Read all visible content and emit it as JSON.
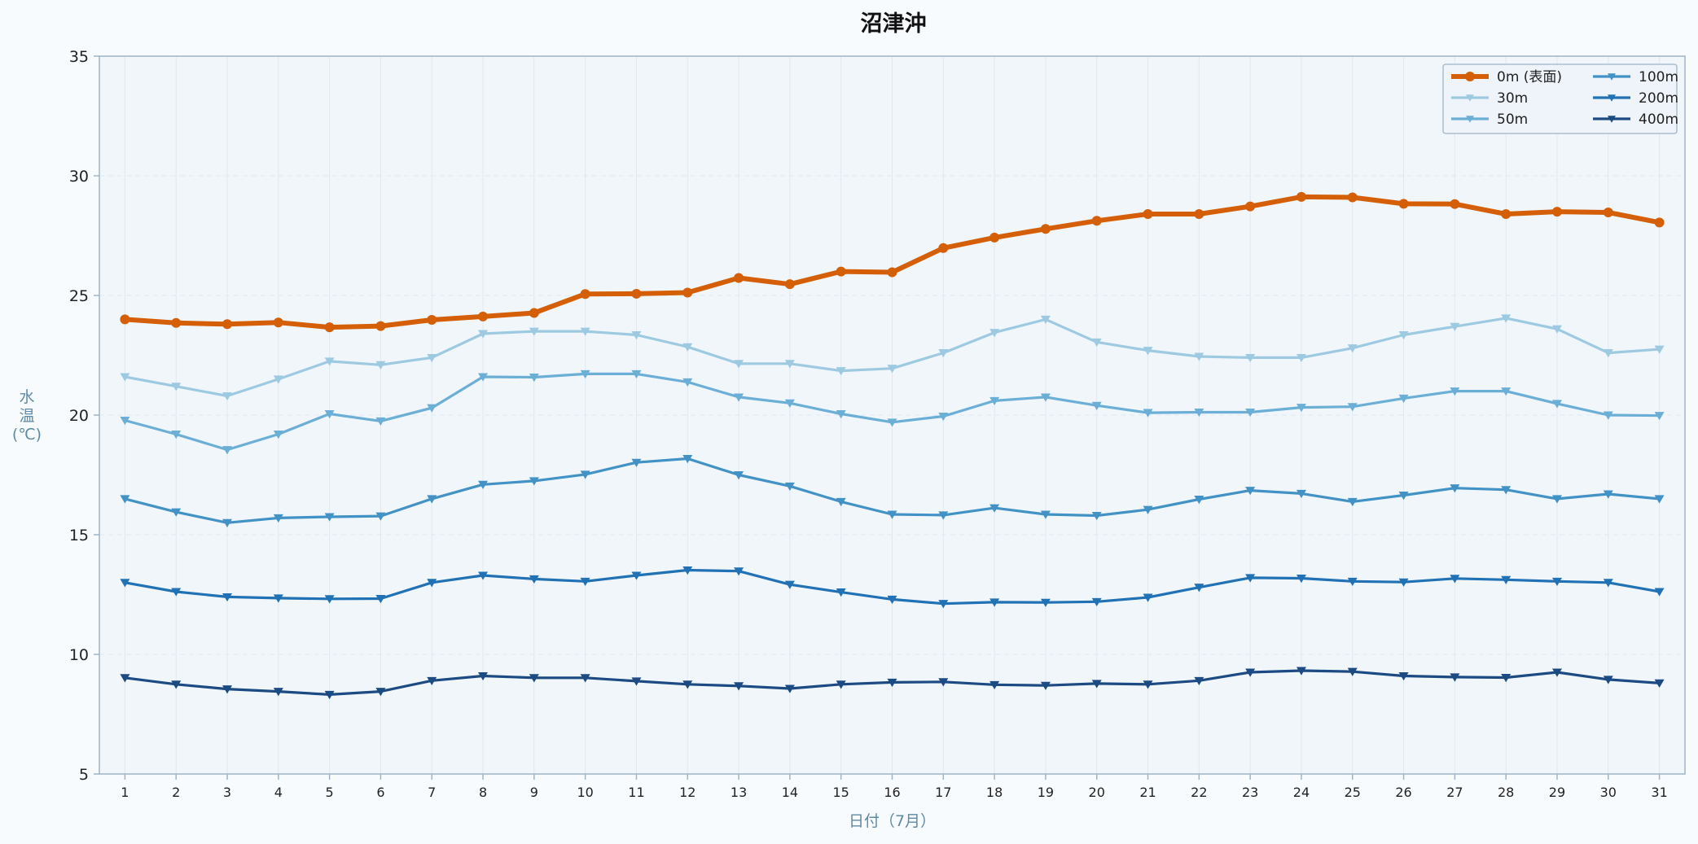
{
  "colors": {
    "background": "#f7fbfe",
    "plot_background": "#f1f6fb",
    "axis": "#9fb4c6",
    "grid": "#dfe8f1",
    "axis_label": "#5f8aa3"
  },
  "chart_data": {
    "type": "line",
    "title": "沼津沖",
    "xlabel": "日付（7月）",
    "ylabel_lines": [
      "水",
      "温",
      "(℃)"
    ],
    "x": [
      1,
      2,
      3,
      4,
      5,
      6,
      7,
      8,
      9,
      10,
      11,
      12,
      13,
      14,
      15,
      16,
      17,
      18,
      19,
      20,
      21,
      22,
      23,
      24,
      25,
      26,
      27,
      28,
      29,
      30,
      31
    ],
    "xlim": [
      0.5,
      31.5
    ],
    "ylim": [
      5,
      35
    ],
    "yticks": [
      5,
      10,
      15,
      20,
      25,
      30,
      35
    ],
    "grid": true,
    "legend": {
      "position": "top-right",
      "columns": 2
    },
    "series": [
      {
        "name": "0m (表面)",
        "color": "#d45f06",
        "marker": "circle",
        "values": [
          24.0,
          23.85,
          23.8,
          23.87,
          23.67,
          23.72,
          23.98,
          24.12,
          24.27,
          25.06,
          25.07,
          25.12,
          25.73,
          25.47,
          26.0,
          25.97,
          26.98,
          27.42,
          27.78,
          28.12,
          28.4,
          28.4,
          28.72,
          29.12,
          29.1,
          28.83,
          28.82,
          28.4,
          28.5,
          28.47,
          28.05
        ]
      },
      {
        "name": "30m",
        "color": "#9ecae1",
        "marker": "triangle-down",
        "values": [
          21.6,
          21.2,
          20.8,
          21.5,
          22.25,
          22.1,
          22.4,
          23.4,
          23.5,
          23.5,
          23.35,
          22.85,
          22.15,
          22.15,
          21.85,
          21.95,
          22.6,
          23.45,
          24.0,
          23.05,
          22.7,
          22.45,
          22.4,
          22.4,
          22.8,
          23.35,
          23.7,
          24.05,
          23.6,
          22.6,
          22.75
        ]
      },
      {
        "name": "50m",
        "color": "#6baed6",
        "marker": "triangle-down",
        "values": [
          19.78,
          19.2,
          18.55,
          19.2,
          20.05,
          19.75,
          20.3,
          21.6,
          21.58,
          21.72,
          21.72,
          21.38,
          20.75,
          20.5,
          20.05,
          19.7,
          19.95,
          20.6,
          20.75,
          20.4,
          20.1,
          20.12,
          20.12,
          20.32,
          20.35,
          20.7,
          21.0,
          21.0,
          20.48,
          20.0,
          19.98
        ]
      },
      {
        "name": "100m",
        "color": "#4292c6",
        "marker": "triangle-down",
        "values": [
          16.5,
          15.95,
          15.5,
          15.7,
          15.75,
          15.78,
          16.5,
          17.1,
          17.25,
          17.52,
          18.02,
          18.18,
          17.5,
          17.03,
          16.38,
          15.85,
          15.82,
          16.12,
          15.85,
          15.8,
          16.05,
          16.48,
          16.85,
          16.72,
          16.38,
          16.65,
          16.95,
          16.88,
          16.5,
          16.7,
          16.5
        ]
      },
      {
        "name": "200m",
        "color": "#2171b5",
        "marker": "triangle-down",
        "values": [
          13.0,
          12.62,
          12.4,
          12.35,
          12.32,
          12.33,
          13.0,
          13.3,
          13.15,
          13.05,
          13.3,
          13.52,
          13.48,
          12.92,
          12.6,
          12.3,
          12.12,
          12.18,
          12.17,
          12.2,
          12.38,
          12.8,
          13.2,
          13.18,
          13.05,
          13.02,
          13.17,
          13.12,
          13.05,
          13.0,
          12.62
        ]
      },
      {
        "name": "400m",
        "color": "#1c4a82",
        "marker": "triangle-down",
        "values": [
          9.02,
          8.75,
          8.55,
          8.45,
          8.32,
          8.45,
          8.9,
          9.1,
          9.02,
          9.02,
          8.88,
          8.75,
          8.68,
          8.57,
          8.75,
          8.83,
          8.85,
          8.73,
          8.7,
          8.78,
          8.75,
          8.9,
          9.25,
          9.32,
          9.28,
          9.1,
          9.05,
          9.03,
          9.25,
          8.95,
          8.8
        ]
      }
    ]
  }
}
